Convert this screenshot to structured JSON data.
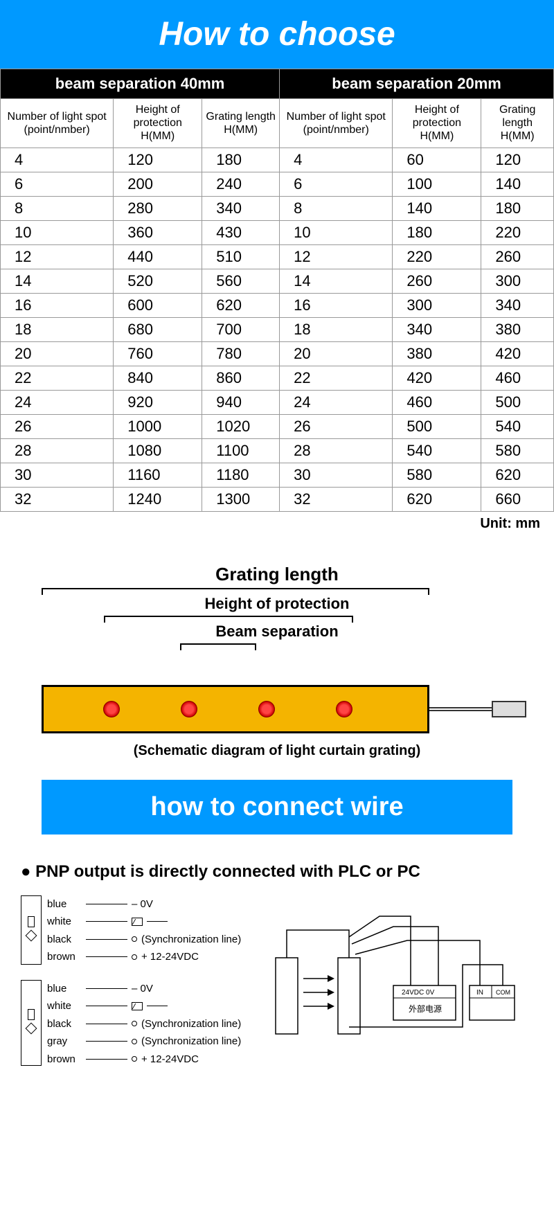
{
  "header": {
    "title": "How to choose"
  },
  "table": {
    "section40": "beam separation 40mm",
    "section20": "beam separation 20mm",
    "cols": {
      "c1": "Number of light spot (point/nmber)",
      "c2": "Height of protection H(MM)",
      "c3": "Grating length H(MM)"
    },
    "rows40": [
      [
        "4",
        "120",
        "180"
      ],
      [
        "6",
        "200",
        "240"
      ],
      [
        "8",
        "280",
        "340"
      ],
      [
        "10",
        "360",
        "430"
      ],
      [
        "12",
        "440",
        "510"
      ],
      [
        "14",
        "520",
        "560"
      ],
      [
        "16",
        "600",
        "620"
      ],
      [
        "18",
        "680",
        "700"
      ],
      [
        "20",
        "760",
        "780"
      ],
      [
        "22",
        "840",
        "860"
      ],
      [
        "24",
        "920",
        "940"
      ],
      [
        "26",
        "1000",
        "1020"
      ],
      [
        "28",
        "1080",
        "1100"
      ],
      [
        "30",
        "1160",
        "1180"
      ],
      [
        "32",
        "1240",
        "1300"
      ]
    ],
    "rows20": [
      [
        "4",
        "60",
        "120"
      ],
      [
        "6",
        "100",
        "140"
      ],
      [
        "8",
        "140",
        "180"
      ],
      [
        "10",
        "180",
        "220"
      ],
      [
        "12",
        "220",
        "260"
      ],
      [
        "14",
        "260",
        "300"
      ],
      [
        "16",
        "300",
        "340"
      ],
      [
        "18",
        "340",
        "380"
      ],
      [
        "20",
        "380",
        "420"
      ],
      [
        "22",
        "420",
        "460"
      ],
      [
        "24",
        "460",
        "500"
      ],
      [
        "26",
        "500",
        "540"
      ],
      [
        "28",
        "540",
        "580"
      ],
      [
        "30",
        "580",
        "620"
      ],
      [
        "32",
        "620",
        "660"
      ]
    ],
    "unit": "Unit: mm"
  },
  "diagram": {
    "label_grating": "Grating length",
    "label_height": "Height of protection",
    "label_beam": "Beam separation",
    "caption": "(Schematic diagram of light curtain grating)",
    "bar_color": "#f4b400",
    "led_color": "#ff3333",
    "led_positions_pct": [
      18,
      38,
      58,
      78
    ]
  },
  "wire_header": {
    "title": "how to connect wire"
  },
  "wire": {
    "pnp_title": "● PNP output is directly connected with PLC or PC",
    "sensor1": {
      "rows": [
        {
          "color": "blue",
          "note": "– 0V",
          "hasbox": false
        },
        {
          "color": "white",
          "note": "",
          "hasbox": true
        },
        {
          "color": "black",
          "note": "(Synchronization line)",
          "hasbox": false,
          "term": true
        },
        {
          "color": "brown",
          "note": "+ 12-24VDC",
          "hasbox": false,
          "term": true
        }
      ]
    },
    "sensor2": {
      "rows": [
        {
          "color": "blue",
          "note": "– 0V",
          "hasbox": false
        },
        {
          "color": "white",
          "note": "",
          "hasbox": true
        },
        {
          "color": "black",
          "note": "(Synchronization line)",
          "hasbox": false,
          "term": true
        },
        {
          "color": "gray",
          "note": "(Synchronization line)",
          "hasbox": false,
          "term": true
        },
        {
          "color": "brown",
          "note": "+ 12-24VDC",
          "hasbox": false,
          "term": true
        }
      ]
    },
    "right_labels": {
      "ps_top": "24VDC  0V",
      "ps_cn": "外部电源",
      "plc_in": "IN",
      "plc_com": "COM"
    }
  },
  "colors": {
    "blue": "#0099ff",
    "black": "#000000",
    "border": "#999999"
  }
}
